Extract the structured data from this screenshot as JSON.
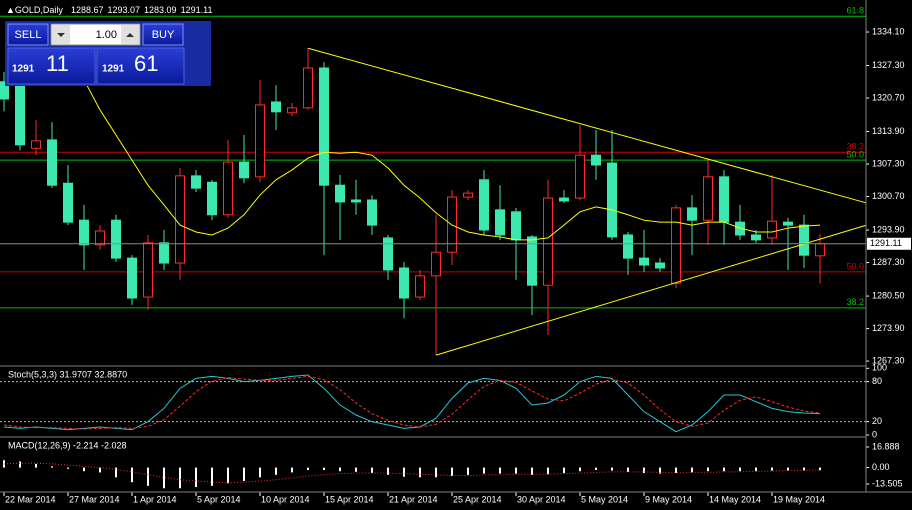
{
  "trade_panel": {
    "sell_label": "SELL",
    "buy_label": "BUY",
    "lot": "1.00",
    "bid_big": "1291",
    "bid_small": "11",
    "ask_big": "1291",
    "ask_small": "61"
  },
  "chart_data": [
    {
      "type": "candlestick",
      "title": "GOLD,Daily",
      "categories": [
        "22 Mar 2014",
        null,
        null,
        null,
        "27 Mar 2014",
        null,
        null,
        null,
        "1 Apr 2014",
        null,
        null,
        null,
        "5 Apr 2014",
        null,
        null,
        null,
        "10 Apr 2014",
        null,
        null,
        null,
        "15 Apr 2014",
        null,
        null,
        null,
        "21 Apr 2014",
        null,
        null,
        null,
        "25 Apr 2014",
        null,
        null,
        null,
        "30 Apr 2014",
        null,
        null,
        null,
        "5 May 2014",
        null,
        null,
        null,
        "9 May 2014",
        null,
        null,
        null,
        "14 May 2014",
        null,
        null,
        null,
        "19 May 2014",
        null,
        null,
        null
      ],
      "open": [
        1324.0,
        1323.3,
        1310.5,
        1312.2,
        1303.4,
        1295.9,
        1290.9,
        1295.9,
        1288.2,
        1280.3,
        1291.3,
        1287.2,
        1304.9,
        1303.6,
        1297.0,
        1307.7,
        1304.7,
        1319.9,
        1317.7,
        1318.7,
        1326.8,
        1303.0,
        1300.0,
        1300.0,
        1292.3,
        1286.2,
        1280.3,
        1284.6,
        1289.4,
        1300.6,
        1304.1,
        1298.0,
        1297.6,
        1292.5,
        1282.7,
        1300.4,
        1300.4,
        1309.1,
        1307.5,
        1292.9,
        1288.2,
        1287.2,
        1283.1,
        1298.4,
        1295.9,
        1304.7,
        1295.5,
        1292.9,
        1292.3,
        1295.5,
        1294.9,
        1288.67
      ],
      "high": [
        1326.0,
        1326.4,
        1316.2,
        1315.8,
        1307.1,
        1299.0,
        1294.9,
        1297.0,
        1288.8,
        1292.9,
        1293.9,
        1306.5,
        1306.1,
        1304.1,
        1312.2,
        1313.2,
        1324.4,
        1323.3,
        1319.7,
        1330.8,
        1328.0,
        1305.1,
        1304.1,
        1301.0,
        1292.9,
        1287.4,
        1285.8,
        1297.0,
        1302.0,
        1302.0,
        1306.1,
        1303.0,
        1298.4,
        1292.9,
        1304.1,
        1302.0,
        1315.2,
        1314.2,
        1314.2,
        1293.5,
        1293.9,
        1288.2,
        1299.0,
        1301.0,
        1308.1,
        1306.1,
        1299.0,
        1293.9,
        1305.1,
        1296.4,
        1297.0,
        1293.07
      ],
      "low": [
        1318.0,
        1310.1,
        1309.1,
        1302.4,
        1294.9,
        1285.8,
        1289.9,
        1287.4,
        1278.7,
        1277.7,
        1285.8,
        1283.8,
        1301.6,
        1295.9,
        1296.4,
        1303.4,
        1303.6,
        1314.2,
        1317.0,
        1318.3,
        1288.8,
        1291.9,
        1297.0,
        1292.9,
        1283.8,
        1276.0,
        1279.7,
        1268.5,
        1286.8,
        1300.0,
        1292.9,
        1291.9,
        1283.8,
        1276.6,
        1272.6,
        1299.4,
        1300.0,
        1304.1,
        1291.9,
        1284.8,
        1285.4,
        1285.4,
        1282.1,
        1288.8,
        1290.9,
        1290.9,
        1291.9,
        1291.3,
        1290.9,
        1285.8,
        1286.2,
        1283.09
      ],
      "close": [
        1320.5,
        1311.2,
        1312.0,
        1303.0,
        1295.5,
        1290.9,
        1293.7,
        1288.2,
        1280.1,
        1291.3,
        1287.2,
        1304.9,
        1302.4,
        1297.0,
        1307.7,
        1304.5,
        1319.3,
        1317.9,
        1318.7,
        1326.8,
        1303.0,
        1299.6,
        1299.6,
        1294.9,
        1285.8,
        1280.1,
        1284.6,
        1289.4,
        1300.6,
        1301.4,
        1293.9,
        1292.9,
        1291.9,
        1282.7,
        1300.4,
        1299.8,
        1309.1,
        1307.1,
        1292.5,
        1288.2,
        1286.8,
        1286.2,
        1298.4,
        1295.9,
        1304.7,
        1295.5,
        1292.9,
        1291.9,
        1295.7,
        1294.9,
        1288.8,
        1291.11
      ],
      "up_color": "#ff2a2a",
      "down_color": "#3ce8b0",
      "ma": {
        "color": "#ffff00",
        "values": [
          null,
          null,
          null,
          null,
          null,
          1324.4,
          1318.3,
          1313.2,
          1308.1,
          1303.0,
          1299.0,
          1294.9,
          1293.5,
          1292.9,
          1294.3,
          1297.0,
          1301.0,
          1304.1,
          1306.1,
          1308.5,
          1309.7,
          1309.5,
          1309.7,
          1309.1,
          1306.5,
          1303.0,
          1300.4,
          1297.4,
          1294.9,
          1293.5,
          1292.9,
          1292.5,
          1291.9,
          1291.9,
          1292.3,
          1294.9,
          1297.6,
          1298.6,
          1298.0,
          1297.0,
          1295.9,
          1295.5,
          1295.5,
          1294.9,
          1295.5,
          1295.5,
          1294.3,
          1293.5,
          1293.5,
          1294.3,
          1294.7,
          1294.9
        ]
      },
      "trendlines": [
        {
          "color": "#ffff00",
          "points": [
            [
              19,
              1330.8
            ],
            [
              53.9,
              1299.4
            ]
          ]
        },
        {
          "color": "#ffff00",
          "points": [
            [
              27,
              1268.5
            ],
            [
              53.9,
              1294.9
            ]
          ]
        }
      ],
      "levels": [
        {
          "value": 1337.3,
          "label": "61.8",
          "color": "#00c000"
        },
        {
          "value": 1309.7,
          "label": "38.2",
          "color": "#d00000"
        },
        {
          "value": 1308.1,
          "label": "50.0",
          "color": "#00c000"
        },
        {
          "value": 1285.4,
          "label": "50.0",
          "color": "#d00000"
        },
        {
          "value": 1278.1,
          "label": "38.2",
          "color": "#00c000"
        }
      ],
      "ylim": [
        1266.3,
        1340.6
      ],
      "yticks": [
        {
          "value": 1334.1,
          "label": "1334.10"
        },
        {
          "value": 1327.3,
          "label": "1327.30"
        },
        {
          "value": 1320.7,
          "label": "1320.70"
        },
        {
          "value": 1313.9,
          "label": "1313.90"
        },
        {
          "value": 1307.3,
          "label": "1307.30"
        },
        {
          "value": 1300.7,
          "label": "1300.70"
        },
        {
          "value": 1293.9,
          "label": "1293.90"
        },
        {
          "value": 1287.3,
          "label": "1287.30"
        },
        {
          "value": 1280.5,
          "label": "1280.50"
        },
        {
          "value": 1273.9,
          "label": "1273.90"
        },
        {
          "value": 1267.3,
          "label": "1267.30"
        }
      ]
    },
    {
      "type": "line",
      "title": "Stoch(5,3,3) 31.9707 32.8870",
      "series": [
        {
          "color": "#22c8d8",
          "dashed": false,
          "values": [
            12,
            10,
            12,
            10,
            8,
            10,
            12,
            10,
            8,
            20,
            40,
            70,
            85,
            88,
            85,
            80,
            82,
            85,
            88,
            90,
            70,
            45,
            30,
            20,
            15,
            10,
            12,
            25,
            55,
            78,
            85,
            82,
            70,
            45,
            48,
            60,
            80,
            88,
            85,
            60,
            35,
            20,
            5,
            15,
            35,
            60,
            60,
            50,
            40,
            35,
            33,
            31.9707
          ]
        },
        {
          "color": "#ff2a2a",
          "dashed": true,
          "values": [
            15,
            12,
            11,
            11,
            10,
            9,
            10,
            11,
            10,
            13,
            23,
            43,
            65,
            81,
            86,
            84,
            82,
            82,
            85,
            88,
            83,
            68,
            48,
            32,
            22,
            15,
            12,
            16,
            31,
            53,
            73,
            82,
            79,
            66,
            54,
            51,
            63,
            76,
            84,
            78,
            60,
            38,
            20,
            13,
            18,
            37,
            52,
            57,
            50,
            42,
            36,
            32.887
          ]
        }
      ],
      "levels": [
        80,
        20
      ],
      "ylim": [
        -3,
        102
      ],
      "yticks": [
        100,
        80,
        20,
        0
      ]
    },
    {
      "type": "macd",
      "title": "MACD(12,26,9) -2.214 -2.028",
      "histogram": {
        "color": "#ffffff",
        "values": [
          6,
          5,
          3,
          1,
          -1,
          -3,
          -4,
          -8,
          -12,
          -15,
          -17,
          -17,
          -16,
          -15,
          -13,
          -11,
          -8,
          -6,
          -4,
          -2,
          -2,
          -3,
          -3.5,
          -4.5,
          -6,
          -7.5,
          -8,
          -8,
          -7,
          -6,
          -5,
          -5,
          -5,
          -6,
          -5.5,
          -4.5,
          -3,
          -2,
          -2.5,
          -3.5,
          -4.5,
          -5,
          -4.5,
          -4,
          -3,
          -3,
          -3,
          -3,
          -2.5,
          -2.5,
          -2.5,
          -2.214
        ]
      },
      "signal": {
        "color": "#ff2a2a",
        "values": [
          3,
          3.5,
          3.5,
          3,
          2,
          1,
          0,
          -1.5,
          -3.5,
          -6,
          -8,
          -10,
          -11,
          -12,
          -12.5,
          -12,
          -11,
          -10,
          -8.5,
          -7,
          -6,
          -5,
          -4.5,
          -4.5,
          -4.5,
          -5,
          -5.5,
          -6,
          -6.5,
          -6.5,
          -6,
          -6,
          -5.5,
          -5.5,
          -5.5,
          -5,
          -4.5,
          -4,
          -3.5,
          -3.5,
          -3.5,
          -4,
          -4,
          -4,
          -4,
          -3.5,
          -3.5,
          -3,
          -3,
          -2.5,
          -2.2,
          -2.028
        ]
      },
      "ylim": [
        -20.08,
        24.28
      ],
      "yticks": [
        16.888,
        {
          "value": 0,
          "label": "0.00"
        },
        -13.505
      ]
    }
  ]
}
